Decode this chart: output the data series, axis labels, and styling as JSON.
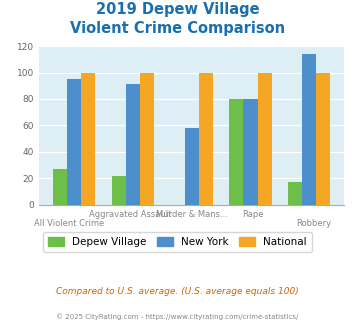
{
  "title_line1": "2019 Depew Village",
  "title_line2": "Violent Crime Comparison",
  "title_color": "#1a6faf",
  "categories": [
    "All Violent Crime",
    "Aggravated Assault",
    "Murder & Mans...",
    "Rape",
    "Robbery"
  ],
  "top_labels": [
    "",
    "Aggravated Assault",
    "Murder & Mans...",
    "Rape",
    ""
  ],
  "bottom_labels": [
    "All Violent Crime",
    "",
    "",
    "",
    "Robbery"
  ],
  "depew_values": [
    27,
    22,
    0,
    80,
    17
  ],
  "ny_values": [
    95,
    91,
    58,
    80,
    114
  ],
  "national_values": [
    100,
    100,
    100,
    100,
    100
  ],
  "depew_color": "#6dbf4a",
  "ny_color": "#4d8fcc",
  "national_color": "#f5a623",
  "ylim": [
    0,
    120
  ],
  "yticks": [
    0,
    20,
    40,
    60,
    80,
    100,
    120
  ],
  "plot_bg": "#ddeef5",
  "legend_labels": [
    "Depew Village",
    "New York",
    "National"
  ],
  "footnote1": "Compared to U.S. average. (U.S. average equals 100)",
  "footnote2": "© 2025 CityRating.com - https://www.cityrating.com/crime-statistics/",
  "footnote1_color": "#cc6600",
  "footnote2_color": "#888888"
}
